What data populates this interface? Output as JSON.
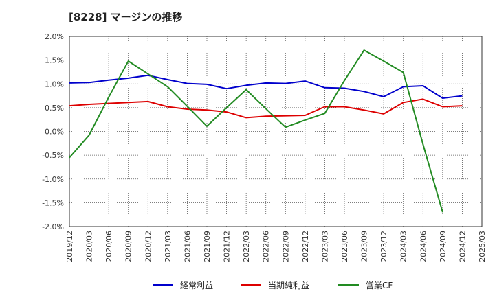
{
  "chart_data": {
    "type": "line",
    "title": "[8228]  マージンの推移",
    "xlabel": "",
    "ylabel": "",
    "ylim": [
      -2.0,
      2.0
    ],
    "y_ticks": [
      "2.0%",
      "1.5%",
      "1.0%",
      "0.5%",
      "0.0%",
      "-0.5%",
      "-1.0%",
      "-1.5%",
      "-2.0%"
    ],
    "y_tick_values": [
      2.0,
      1.5,
      1.0,
      0.5,
      0.0,
      -0.5,
      -1.0,
      -1.5,
      -2.0
    ],
    "categories": [
      "2019/12",
      "2020/03",
      "2020/06",
      "2020/09",
      "2020/12",
      "2021/03",
      "2021/06",
      "2021/09",
      "2021/12",
      "2022/03",
      "2022/06",
      "2022/09",
      "2022/12",
      "2023/03",
      "2023/06",
      "2023/09",
      "2023/12",
      "2024/03",
      "2024/06",
      "2024/09",
      "2024/12",
      "2025/03"
    ],
    "grid": true,
    "legend_position": "bottom",
    "series": [
      {
        "name": "経常利益",
        "color": "#0000cc",
        "values": [
          1.02,
          1.03,
          1.08,
          1.12,
          1.18,
          1.09,
          1.01,
          0.99,
          0.9,
          0.97,
          1.02,
          1.01,
          1.06,
          0.92,
          0.91,
          0.84,
          0.73,
          0.94,
          0.96,
          0.7,
          0.75,
          null
        ]
      },
      {
        "name": "当期純利益",
        "color": "#dd0000",
        "values": [
          0.54,
          0.57,
          0.59,
          0.61,
          0.63,
          0.52,
          0.47,
          0.45,
          0.41,
          0.29,
          0.32,
          0.33,
          0.34,
          0.52,
          0.52,
          0.45,
          0.37,
          0.61,
          0.68,
          0.52,
          0.54,
          null
        ]
      },
      {
        "name": "営業CF",
        "color": "#228b22",
        "values": [
          -0.55,
          -0.08,
          0.72,
          1.48,
          1.21,
          0.94,
          0.53,
          0.11,
          0.5,
          0.88,
          0.48,
          0.09,
          0.24,
          0.38,
          1.07,
          1.71,
          1.48,
          1.24,
          -0.27,
          -1.7,
          null,
          null
        ]
      }
    ]
  }
}
